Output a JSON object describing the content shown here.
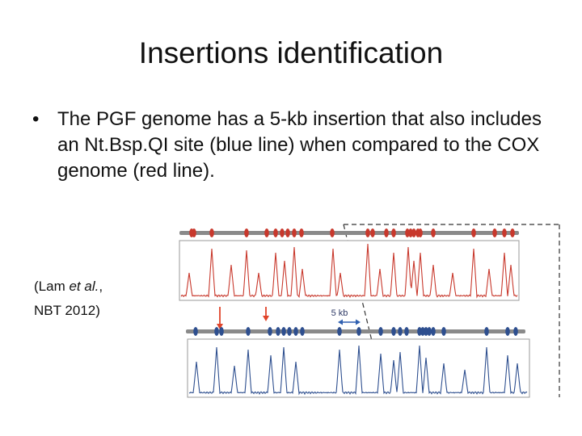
{
  "slide": {
    "title": "Insertions identification",
    "bullets": [
      {
        "text": "The PGF genome has a 5-kb insertion that also includes an Nt.Bsp.QI site (blue line) when compared to the COX genome (red line)."
      }
    ],
    "citation": {
      "prefix": "(Lam ",
      "italic": "et al.",
      "suffix": ",",
      "line2": "NBT 2012)"
    }
  },
  "figure": {
    "insertion_label": "5 kb",
    "colors": {
      "red_track": "#c8382c",
      "blue_track": "#2e4f8f",
      "backbone": "#8a8a8a",
      "panel_border": "#9a9a9a",
      "arrow_red": "#e0442a",
      "arrow_blue": "#2f5fb0",
      "dashed": "#333333"
    }
  }
}
